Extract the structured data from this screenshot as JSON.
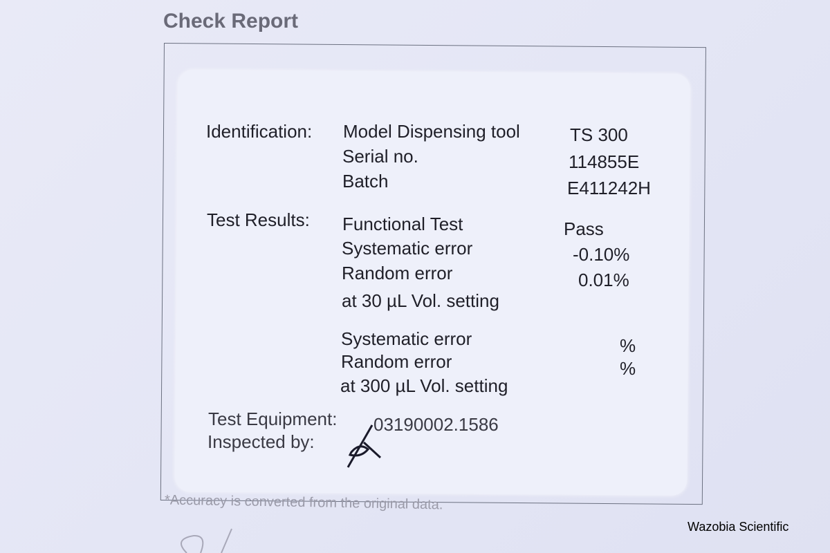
{
  "title": "Check Report",
  "identification": {
    "label": "Identification:",
    "rows": [
      {
        "name": "Model Dispensing tool",
        "value": "TS 300"
      },
      {
        "name": "Serial no.",
        "value": "114855E"
      },
      {
        "name": "Batch",
        "value": "E411242H"
      }
    ]
  },
  "test_results": {
    "label": "Test Results:",
    "rows": [
      {
        "name": "Functional Test",
        "value": "Pass"
      },
      {
        "name": "Systematic error",
        "value": "-0.10%"
      },
      {
        "name": "Random error",
        "value": "0.01%"
      }
    ],
    "setting_30": "at 30 µL Vol. setting",
    "rows_300": [
      {
        "name": "Systematic error",
        "value": "%"
      },
      {
        "name": "Random error",
        "value": "%"
      }
    ],
    "setting_300": "at 300 µL Vol. setting"
  },
  "test_equipment": {
    "label": "Test Equipment:",
    "value": "03190002.1586"
  },
  "inspected_by": {
    "label": "Inspected by:"
  },
  "footnote": "*Accuracy is converted from the original data.",
  "watermark": "Wazobia Scientific"
}
